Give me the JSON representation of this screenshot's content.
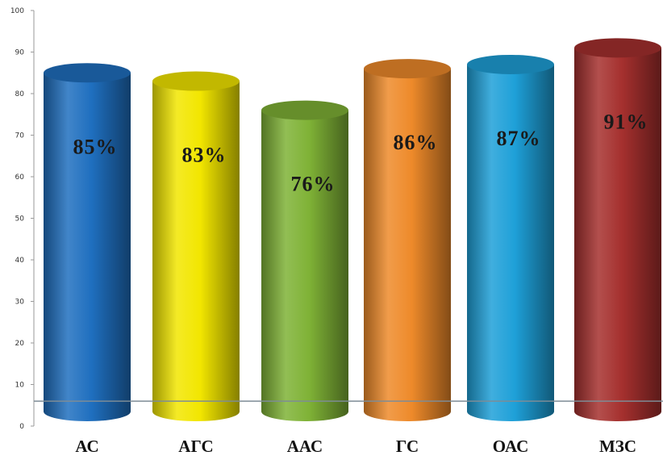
{
  "chart_data": {
    "type": "bar",
    "style": "3d-cylinder",
    "title": "",
    "xlabel": "",
    "ylabel": "",
    "ylim": [
      0,
      100
    ],
    "yticks": [
      0,
      10,
      20,
      30,
      40,
      50,
      60,
      70,
      80,
      90,
      100
    ],
    "yticks_text": [
      "0",
      "10",
      "20",
      "30",
      "40",
      "50",
      "60",
      "70",
      "80",
      "90",
      "100"
    ],
    "grid": false,
    "legend": "none",
    "baseline_value": 6,
    "categories": [
      "АС",
      "АГС",
      "ААС",
      "ГС",
      "ОАС",
      "МЗС"
    ],
    "values": [
      85,
      83,
      76,
      86,
      87,
      91
    ],
    "value_labels": [
      "85%",
      "83%",
      "76%",
      "86%",
      "87%",
      "91%"
    ],
    "colors": [
      "#1f6fbf",
      "#f2e600",
      "#7fb236",
      "#ee8a2a",
      "#1ea0d8",
      "#a5302e"
    ]
  }
}
